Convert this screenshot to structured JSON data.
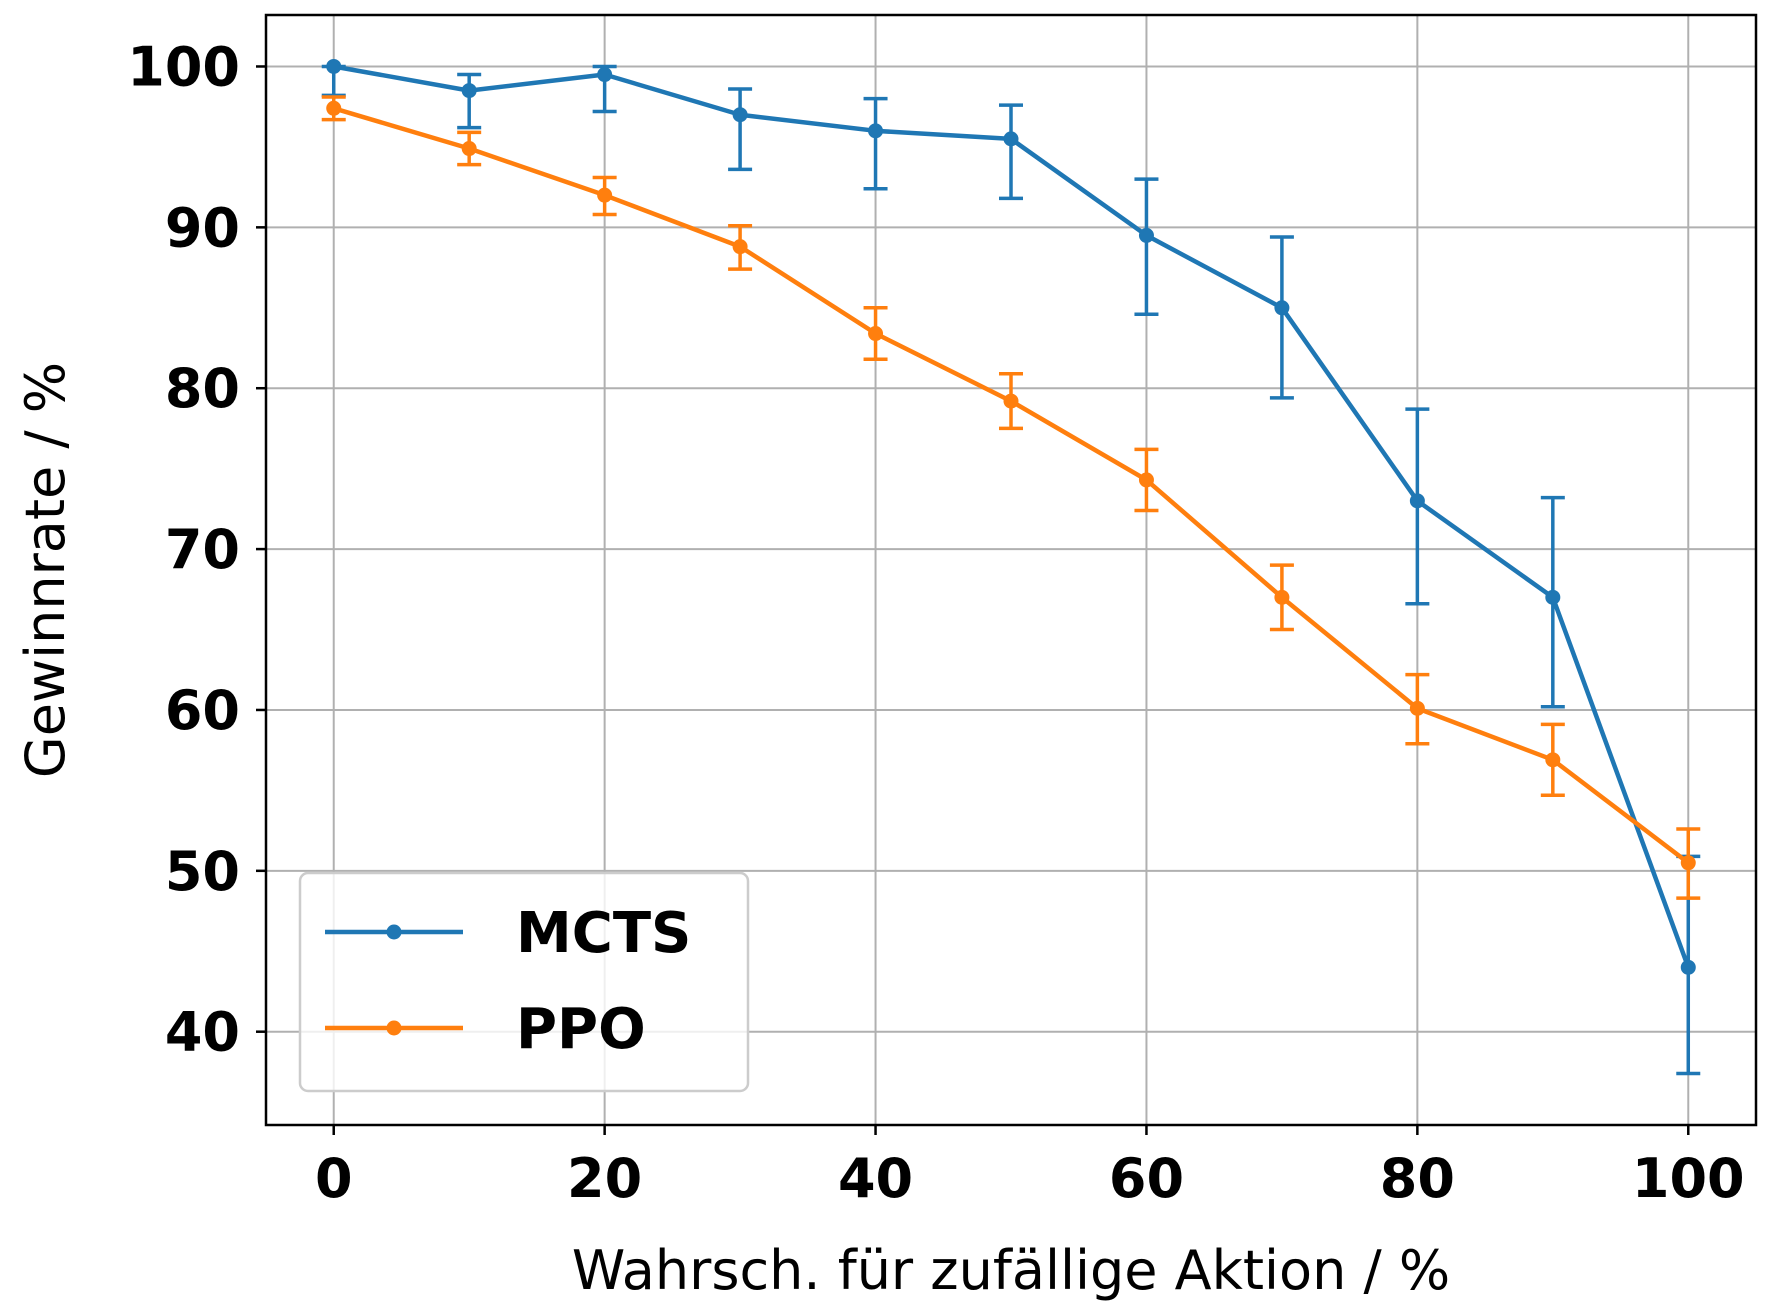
{
  "chart_data": {
    "type": "line",
    "title": "",
    "xlabel": "Wahrsch. für zufällige Aktion / %",
    "ylabel": "Gewinnrate / %",
    "xlim": [
      -5,
      105
    ],
    "ylim": [
      34.2,
      103.2
    ],
    "xticks": [
      0,
      20,
      40,
      60,
      80,
      100
    ],
    "yticks": [
      40,
      50,
      60,
      70,
      80,
      90,
      100
    ],
    "grid": true,
    "legend_position": "lower-left",
    "x": [
      0,
      10,
      20,
      30,
      40,
      50,
      60,
      70,
      80,
      90,
      100
    ],
    "series": [
      {
        "name": "MCTS",
        "color": "#1f77b4",
        "values": [
          100,
          98.5,
          99.5,
          97,
          96,
          95.5,
          89.5,
          85,
          73,
          67,
          44
        ],
        "err_low": [
          98.2,
          96.2,
          97.2,
          93.6,
          92.4,
          91.8,
          84.6,
          79.4,
          66.6,
          60.2,
          37.4
        ],
        "err_high": [
          100,
          99.5,
          100,
          98.6,
          98,
          97.6,
          93,
          89.4,
          78.7,
          73.2,
          50.9
        ]
      },
      {
        "name": "PPO",
        "color": "#ff7f0e",
        "values": [
          97.4,
          94.9,
          92,
          88.8,
          83.4,
          79.2,
          74.3,
          67,
          60.1,
          56.9,
          50.5
        ],
        "err_low": [
          96.7,
          93.9,
          90.8,
          87.4,
          81.8,
          77.5,
          72.4,
          65,
          57.9,
          54.7,
          48.3
        ],
        "err_high": [
          98.1,
          95.9,
          93.1,
          90.1,
          85,
          80.9,
          76.2,
          69,
          62.2,
          59.1,
          52.6
        ]
      }
    ]
  }
}
